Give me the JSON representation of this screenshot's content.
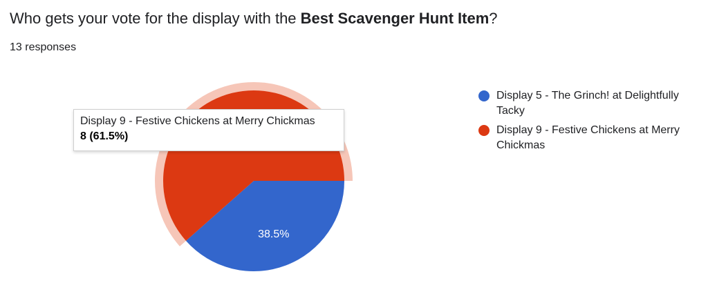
{
  "question": {
    "prefix": "Who gets your vote for the display with the ",
    "emphasis": "Best Scavenger Hunt Item",
    "suffix": "?"
  },
  "responses": "13 responses",
  "tooltip": {
    "title": "Display 9 - Festive Chickens at Merry Chickmas",
    "value": "8 (61.5%)"
  },
  "colors": {
    "display5": "#3366cc",
    "display9": "#dc3912",
    "highlight": "#f6c6b8"
  },
  "chart_data": {
    "type": "pie",
    "total": 13,
    "slices": [
      {
        "label": "Display 5 - The Grinch! at Delightfully Tacky",
        "value": 5,
        "percent": 38.5,
        "percent_label": "38.5%",
        "color": "#3366cc"
      },
      {
        "label": "Display 9 - Festive Chickens at Merry Chickmas",
        "value": 8,
        "percent": 61.5,
        "percent_label": "",
        "color": "#dc3912",
        "highlighted": true
      }
    ],
    "legend_position": "right"
  }
}
